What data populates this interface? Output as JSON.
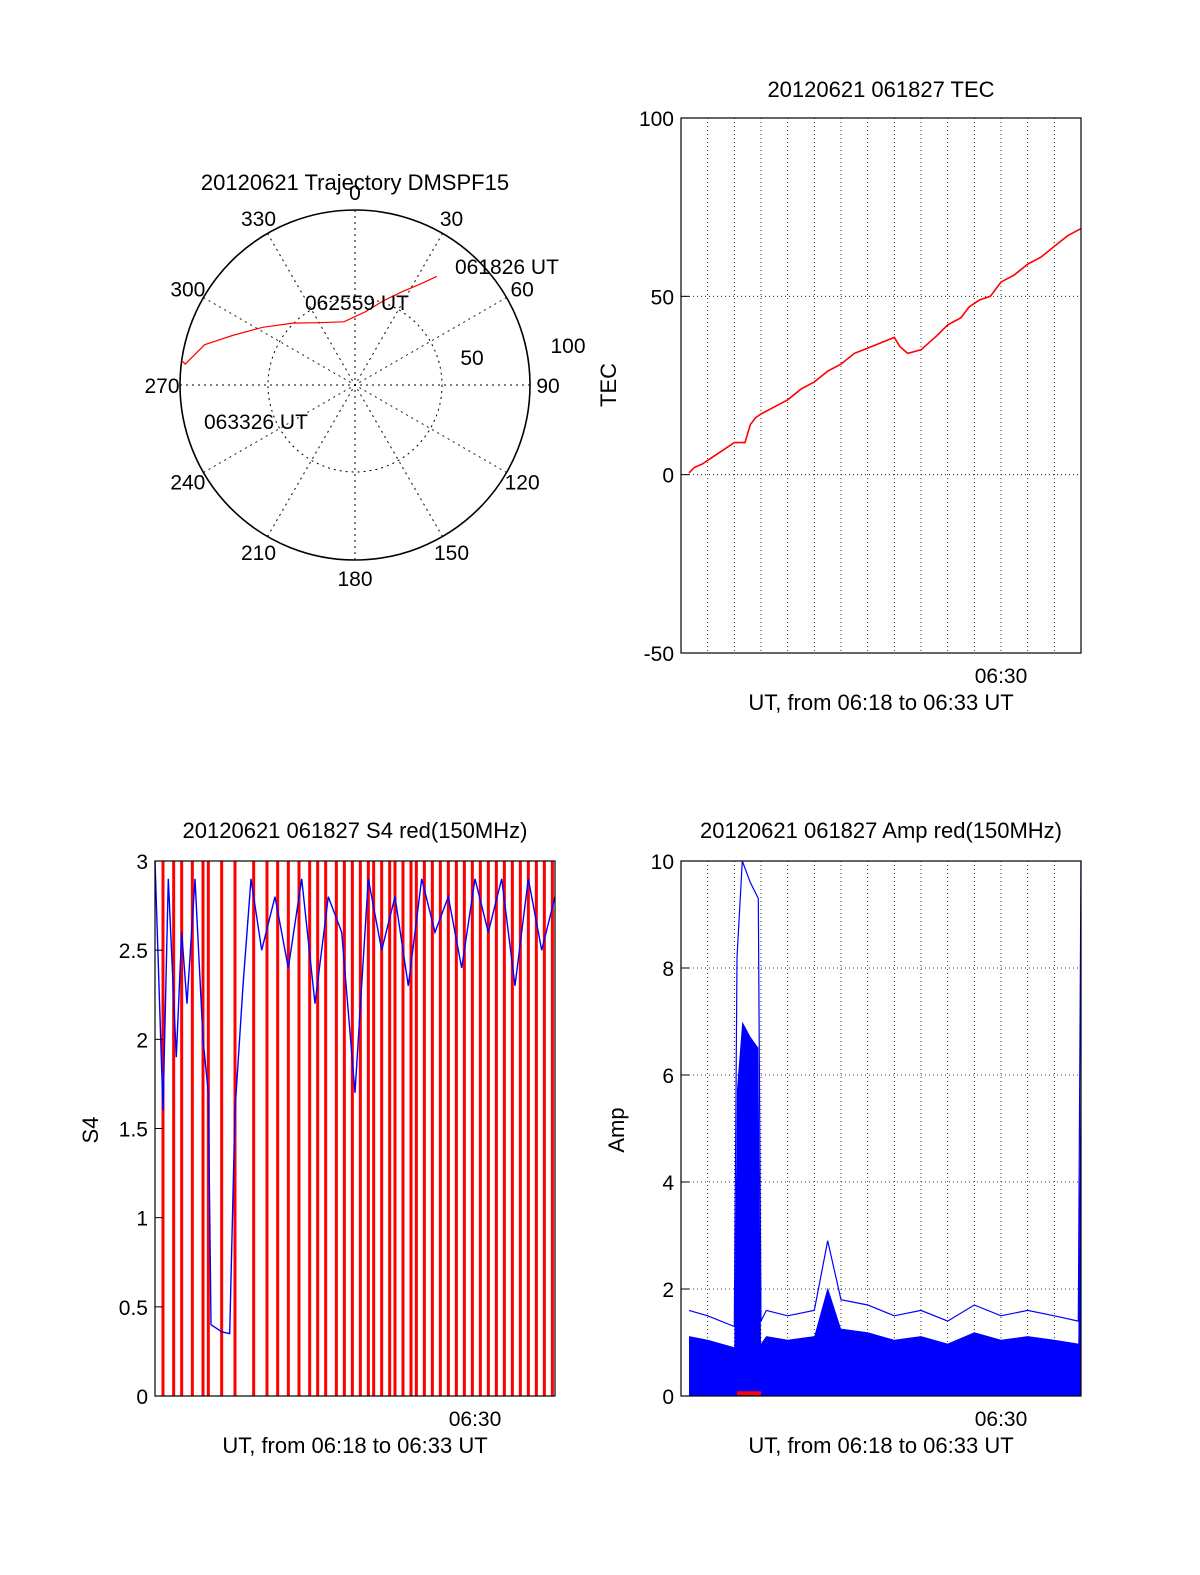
{
  "chart_data": [
    {
      "type": "polar",
      "title": "20120621 Trajectory DMSPF15",
      "angle_labels": [
        "0",
        "30",
        "60",
        "90",
        "120",
        "150",
        "180",
        "210",
        "240",
        "270",
        "300",
        "330"
      ],
      "radius_labels": [
        "50",
        "100"
      ],
      "track_color": "#ff0000",
      "track": [
        {
          "az": 37,
          "el": 20
        },
        {
          "az": 33,
          "el": 28
        },
        {
          "az": 27,
          "el": 36
        },
        {
          "az": 19,
          "el": 44
        },
        {
          "az": 8,
          "el": 52
        },
        {
          "az": -10,
          "el": 57
        },
        {
          "az": -30,
          "el": 53
        },
        {
          "az": -45,
          "el": 45
        },
        {
          "az": -58,
          "el": 34
        },
        {
          "az": -68,
          "el": 22
        },
        {
          "az": -75,
          "el": 10
        },
        {
          "az": -83,
          "el": 2
        },
        {
          "az": -82,
          "el": 0
        }
      ],
      "annotations": [
        {
          "text": "061826 UT"
        },
        {
          "text": "062559 UT"
        },
        {
          "text": "063326 UT"
        }
      ]
    },
    {
      "type": "line",
      "title": "20120621 061827 TEC",
      "xlabel": "UT, from 06:18 to 06:33 UT",
      "ylabel": "TEC",
      "x_tick_labels": [
        "06:30"
      ],
      "y_tick_labels": [
        "100",
        "50",
        "0",
        "-50"
      ],
      "ylim": [
        -50,
        100
      ],
      "xlim_min": [
        0,
        15
      ],
      "grid": true,
      "series": [
        {
          "color": "#ff0000",
          "x": [
            0.3,
            0.5,
            0.8,
            1.2,
            1.6,
            2.0,
            2.4,
            2.6,
            2.8,
            3.0,
            3.5,
            4.0,
            4.5,
            5.0,
            5.5,
            6.0,
            6.5,
            7.0,
            7.5,
            8.0,
            8.2,
            8.5,
            9.0,
            9.3,
            9.6,
            10.0,
            10.5,
            10.8,
            11.2,
            11.6,
            12.0,
            12.5,
            13.0,
            13.5,
            14.0,
            14.5,
            15.0
          ],
          "y": [
            0.5,
            2,
            3,
            5,
            7,
            9,
            9,
            14,
            16,
            17,
            19,
            21,
            24,
            26,
            29,
            31,
            34,
            35.5,
            37,
            38.5,
            36,
            34,
            35,
            37,
            39,
            42,
            44,
            47,
            49,
            50,
            54,
            56,
            59,
            61,
            64,
            67,
            69
          ]
        }
      ]
    },
    {
      "type": "line",
      "title": "20120621 061827 S4 red(150MHz)",
      "xlabel": "UT, from 06:18 to 06:33 UT",
      "ylabel": "S4",
      "x_tick_labels": [
        "06:30"
      ],
      "y_tick_labels": [
        "3",
        "2.5",
        "2",
        "1.5",
        "1",
        "0.5",
        "0"
      ],
      "ylim": [
        0,
        3
      ],
      "xlim_min": [
        0,
        15
      ],
      "series": [
        {
          "color": "#0000ff",
          "x": [
            0.0,
            0.3,
            0.5,
            0.8,
            1.0,
            1.2,
            1.5,
            1.8,
            2.0,
            2.1,
            2.3,
            2.5,
            2.8,
            3.0,
            3.3,
            3.6,
            4.0,
            4.5,
            5.0,
            5.5,
            6.0,
            6.5,
            7.0,
            7.5,
            8.0,
            8.5,
            9.0,
            9.5,
            10.0,
            10.5,
            11.0,
            11.5,
            12.0,
            12.5,
            13.0,
            13.5,
            14.0,
            14.5,
            15.0
          ],
          "y": [
            3.0,
            1.6,
            2.9,
            1.9,
            2.6,
            2.2,
            2.9,
            2.0,
            1.7,
            0.4,
            0.38,
            0.36,
            0.35,
            1.6,
            2.3,
            2.9,
            2.5,
            2.8,
            2.4,
            2.9,
            2.2,
            2.8,
            2.6,
            1.7,
            2.9,
            2.5,
            2.8,
            2.3,
            2.9,
            2.6,
            2.8,
            2.4,
            2.9,
            2.6,
            2.9,
            2.3,
            2.9,
            2.5,
            2.8
          ]
        }
      ],
      "red_spikes_x": [
        0.3,
        0.7,
        1.0,
        1.4,
        1.8,
        2.0,
        2.5,
        3.0,
        3.7,
        4.2,
        4.6,
        5.0,
        5.4,
        5.8,
        6.1,
        6.4,
        6.8,
        7.1,
        7.4,
        7.7,
        8.0,
        8.2,
        8.5,
        8.8,
        9.0,
        9.3,
        9.6,
        9.8,
        10.1,
        10.4,
        10.7,
        11.0,
        11.3,
        11.6,
        11.9,
        12.2,
        12.5,
        12.8,
        13.1,
        13.4,
        13.7,
        14.0,
        14.3,
        14.6,
        14.9
      ]
    },
    {
      "type": "line",
      "title": "20120621 061827 Amp red(150MHz)",
      "xlabel": "UT, from 06:18 to 06:33 UT",
      "ylabel": "Amp",
      "x_tick_labels": [
        "06:30"
      ],
      "y_tick_labels": [
        "10",
        "8",
        "6",
        "4",
        "2",
        "0"
      ],
      "ylim": [
        0,
        10
      ],
      "xlim_min": [
        0,
        15
      ],
      "grid": true,
      "series": [
        {
          "color": "#0000ff",
          "x": [
            0.3,
            1.0,
            2.0,
            2.1,
            2.3,
            2.6,
            2.9,
            3.0,
            3.2,
            4.0,
            5.0,
            5.5,
            6.0,
            7.0,
            8.0,
            9.0,
            10.0,
            11.0,
            12.0,
            13.0,
            14.0,
            14.9,
            15.0
          ],
          "y": [
            1.6,
            1.5,
            1.3,
            8.2,
            10.0,
            9.6,
            9.3,
            1.4,
            1.6,
            1.5,
            1.6,
            2.9,
            1.8,
            1.7,
            1.5,
            1.6,
            1.4,
            1.7,
            1.5,
            1.6,
            1.5,
            1.4,
            10.0
          ]
        },
        {
          "color": "#ff0000",
          "x": [
            2.1,
            3.0
          ],
          "y": [
            0.05,
            0.05
          ]
        }
      ]
    }
  ]
}
